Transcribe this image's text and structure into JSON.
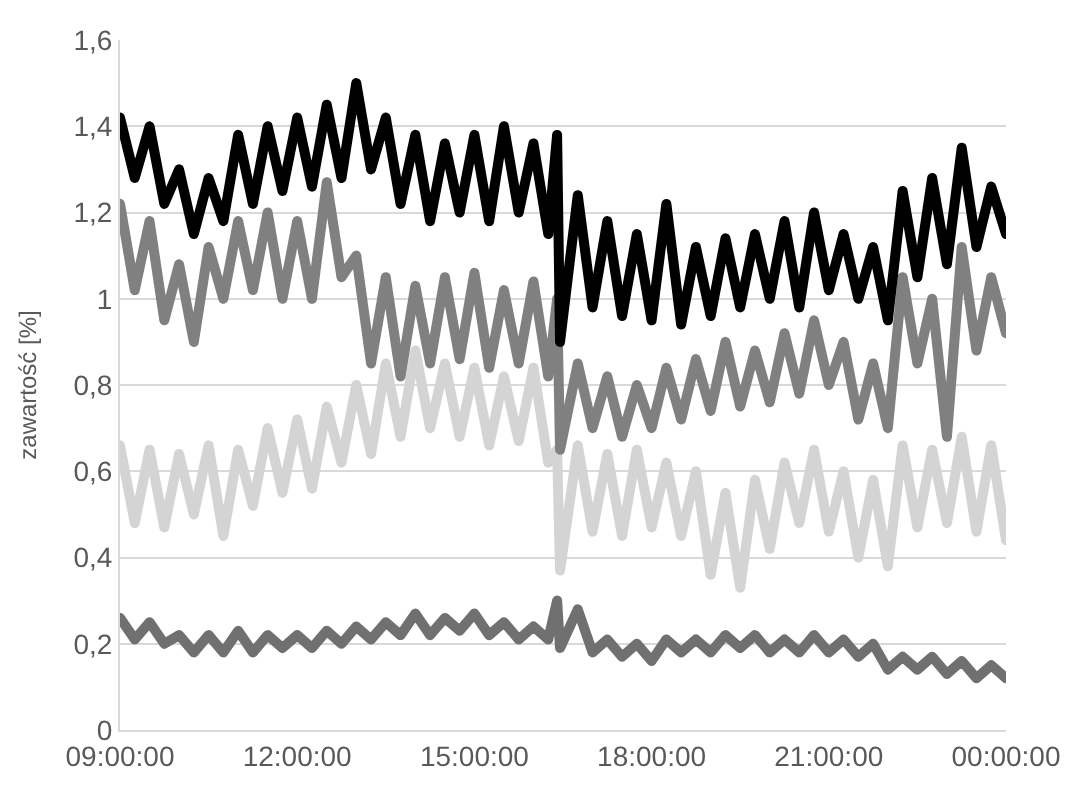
{
  "chart_data": {
    "type": "line",
    "ylabel": "zawartość [%]",
    "x": [
      "2000-01-01T09:00",
      "2000-01-01T09:15",
      "2000-01-01T09:30",
      "2000-01-01T09:45",
      "2000-01-01T10:00",
      "2000-01-01T10:15",
      "2000-01-01T10:30",
      "2000-01-01T10:45",
      "2000-01-01T11:00",
      "2000-01-01T11:15",
      "2000-01-01T11:30",
      "2000-01-01T11:45",
      "2000-01-01T12:00",
      "2000-01-01T12:15",
      "2000-01-01T12:30",
      "2000-01-01T12:45",
      "2000-01-01T13:00",
      "2000-01-01T13:15",
      "2000-01-01T13:30",
      "2000-01-01T13:45",
      "2000-01-01T14:00",
      "2000-01-01T14:15",
      "2000-01-01T14:30",
      "2000-01-01T14:45",
      "2000-01-01T15:00",
      "2000-01-01T15:15",
      "2000-01-01T15:30",
      "2000-01-01T15:45",
      "2000-01-01T16:00",
      "2000-01-01T16:15",
      "2000-01-01T16:24",
      "2000-01-01T16:27",
      "2000-01-01T16:45",
      "2000-01-01T17:00",
      "2000-01-01T17:15",
      "2000-01-01T17:30",
      "2000-01-01T17:45",
      "2000-01-01T18:00",
      "2000-01-01T18:15",
      "2000-01-01T18:30",
      "2000-01-01T18:45",
      "2000-01-01T19:00",
      "2000-01-01T19:15",
      "2000-01-01T19:30",
      "2000-01-01T19:45",
      "2000-01-01T20:00",
      "2000-01-01T20:15",
      "2000-01-01T20:30",
      "2000-01-01T20:45",
      "2000-01-01T21:00",
      "2000-01-01T21:15",
      "2000-01-01T21:30",
      "2000-01-01T21:45",
      "2000-01-01T22:00",
      "2000-01-01T22:15",
      "2000-01-01T22:30",
      "2000-01-01T22:45",
      "2000-01-01T23:00",
      "2000-01-01T23:15",
      "2000-01-01T23:30",
      "2000-01-01T23:45",
      "2000-01-02T00:00"
    ],
    "series": [
      {
        "color": "#d4d4d4",
        "values": [
          0.66,
          0.48,
          0.65,
          0.47,
          0.64,
          0.5,
          0.66,
          0.45,
          0.65,
          0.52,
          0.7,
          0.55,
          0.72,
          0.56,
          0.75,
          0.62,
          0.8,
          0.64,
          0.85,
          0.68,
          0.88,
          0.7,
          0.85,
          0.68,
          0.84,
          0.66,
          0.82,
          0.67,
          0.84,
          0.62,
          0.65,
          0.37,
          0.66,
          0.46,
          0.64,
          0.45,
          0.65,
          0.47,
          0.62,
          0.45,
          0.6,
          0.36,
          0.55,
          0.33,
          0.58,
          0.42,
          0.62,
          0.48,
          0.65,
          0.46,
          0.6,
          0.4,
          0.58,
          0.38,
          0.66,
          0.47,
          0.65,
          0.48,
          0.68,
          0.46,
          0.66,
          0.44
        ]
      },
      {
        "color": "#808080",
        "values": [
          1.22,
          1.02,
          1.18,
          0.95,
          1.08,
          0.9,
          1.12,
          1.0,
          1.18,
          1.02,
          1.2,
          1.0,
          1.18,
          1.0,
          1.27,
          1.05,
          1.1,
          0.85,
          1.05,
          0.82,
          1.03,
          0.85,
          1.05,
          0.86,
          1.06,
          0.84,
          1.02,
          0.85,
          1.04,
          0.82,
          1.0,
          0.65,
          0.85,
          0.7,
          0.82,
          0.68,
          0.8,
          0.7,
          0.84,
          0.72,
          0.86,
          0.74,
          0.9,
          0.75,
          0.88,
          0.76,
          0.92,
          0.78,
          0.95,
          0.8,
          0.9,
          0.72,
          0.85,
          0.7,
          1.05,
          0.85,
          1.0,
          0.68,
          1.12,
          0.88,
          1.05,
          0.92
        ]
      },
      {
        "color": "#000000",
        "values": [
          1.42,
          1.28,
          1.4,
          1.22,
          1.3,
          1.15,
          1.28,
          1.18,
          1.38,
          1.22,
          1.4,
          1.25,
          1.42,
          1.26,
          1.45,
          1.28,
          1.5,
          1.3,
          1.42,
          1.22,
          1.38,
          1.18,
          1.36,
          1.2,
          1.38,
          1.18,
          1.4,
          1.2,
          1.36,
          1.15,
          1.38,
          0.9,
          1.24,
          0.98,
          1.18,
          0.96,
          1.15,
          0.95,
          1.22,
          0.94,
          1.12,
          0.96,
          1.14,
          0.98,
          1.15,
          1.0,
          1.18,
          0.98,
          1.2,
          1.02,
          1.15,
          1.0,
          1.12,
          0.95,
          1.25,
          1.05,
          1.28,
          1.08,
          1.35,
          1.12,
          1.26,
          1.15
        ]
      },
      {
        "color": "#707070",
        "values": [
          0.26,
          0.21,
          0.25,
          0.2,
          0.22,
          0.18,
          0.22,
          0.18,
          0.23,
          0.18,
          0.22,
          0.19,
          0.22,
          0.19,
          0.23,
          0.2,
          0.24,
          0.21,
          0.25,
          0.22,
          0.27,
          0.22,
          0.26,
          0.23,
          0.27,
          0.22,
          0.25,
          0.21,
          0.24,
          0.21,
          0.3,
          0.19,
          0.28,
          0.18,
          0.21,
          0.17,
          0.2,
          0.16,
          0.21,
          0.18,
          0.21,
          0.18,
          0.22,
          0.19,
          0.22,
          0.18,
          0.21,
          0.18,
          0.22,
          0.18,
          0.21,
          0.17,
          0.2,
          0.14,
          0.17,
          0.14,
          0.17,
          0.13,
          0.16,
          0.12,
          0.15,
          0.12
        ]
      }
    ],
    "xlim": [
      "2000-01-01T09:00",
      "2000-01-02T00:00"
    ],
    "xticks": [
      {
        "value": "2000-01-01T09:00",
        "label": "09:00:00"
      },
      {
        "value": "2000-01-01T12:00",
        "label": "12:00:00"
      },
      {
        "value": "2000-01-01T15:00",
        "label": "15:00:00"
      },
      {
        "value": "2000-01-01T18:00",
        "label": "18:00:00"
      },
      {
        "value": "2000-01-01T21:00",
        "label": "21:00:00"
      },
      {
        "value": "2000-01-02T00:00",
        "label": "00:00:00"
      }
    ],
    "ylim": [
      0,
      1.6
    ],
    "yticks": [
      0,
      {
        "value": 0.2,
        "label": "0,2"
      },
      {
        "value": 0.4,
        "label": "0,4"
      },
      {
        "value": 0.6,
        "label": "0,6"
      },
      {
        "value": 0.8,
        "label": "0,8"
      },
      1,
      {
        "value": 1.2,
        "label": "1,2"
      },
      {
        "value": 1.4,
        "label": "1,4"
      },
      {
        "value": 1.6,
        "label": "1,6"
      }
    ],
    "grid": "y",
    "marker": "none",
    "line_style": "solid"
  }
}
